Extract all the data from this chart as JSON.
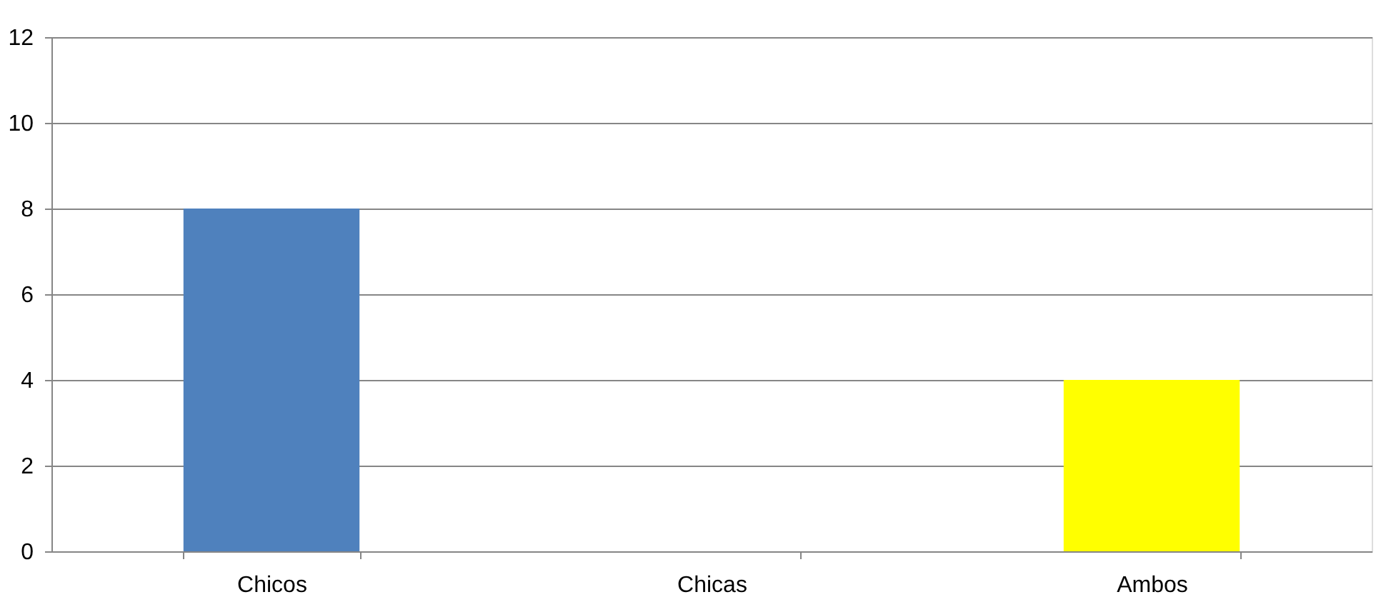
{
  "chart_data": {
    "type": "bar",
    "categories": [
      "Chicos",
      "Chicas",
      "Ambos"
    ],
    "values": [
      8,
      0,
      4
    ],
    "colors": [
      "#4f81bd",
      "#c0504d",
      "#ffff00"
    ],
    "ylim": [
      0,
      12
    ],
    "yticks": [
      0,
      2,
      4,
      6,
      8,
      10,
      12
    ],
    "grid": "y"
  }
}
